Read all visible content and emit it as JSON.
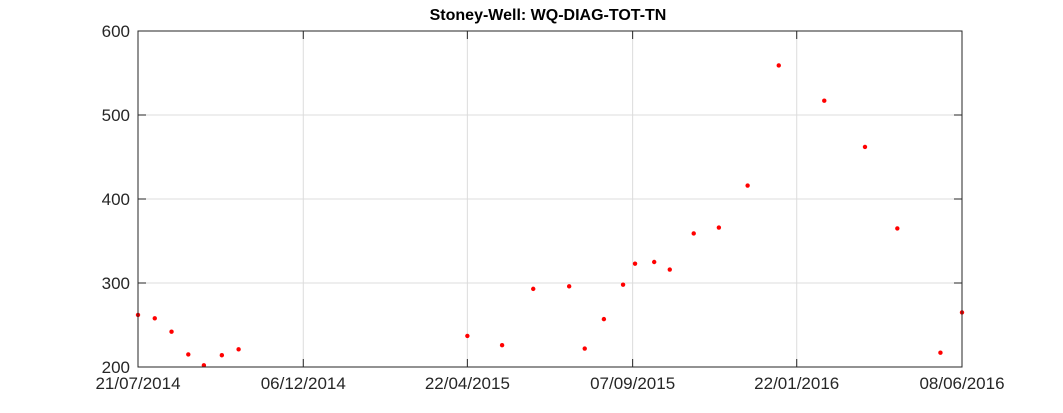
{
  "chart_data": {
    "type": "scatter",
    "title": "Stoney-Well: WQ-DIAG-TOT-TN",
    "xlabel": "",
    "ylabel": "",
    "xlim": [
      "2014-07-21",
      "2016-06-08"
    ],
    "ylim": [
      200,
      600
    ],
    "x_ticks": [
      "21/07/2014",
      "06/12/2014",
      "22/04/2015",
      "07/09/2015",
      "22/01/2016",
      "08/06/2016"
    ],
    "y_ticks": [
      200,
      300,
      400,
      500,
      600
    ],
    "grid": true,
    "marker_color": "#ff0000",
    "series": [
      {
        "points": [
          {
            "x": "2014-07-21",
            "y": 262
          },
          {
            "x": "2014-08-04",
            "y": 258
          },
          {
            "x": "2014-08-18",
            "y": 242
          },
          {
            "x": "2014-09-01",
            "y": 215
          },
          {
            "x": "2014-09-14",
            "y": 202
          },
          {
            "x": "2014-09-29",
            "y": 214
          },
          {
            "x": "2014-10-13",
            "y": 221
          },
          {
            "x": "2015-04-22",
            "y": 237
          },
          {
            "x": "2015-05-21",
            "y": 226
          },
          {
            "x": "2015-06-16",
            "y": 293
          },
          {
            "x": "2015-07-16",
            "y": 296
          },
          {
            "x": "2015-07-29",
            "y": 222
          },
          {
            "x": "2015-08-14",
            "y": 257
          },
          {
            "x": "2015-08-30",
            "y": 298
          },
          {
            "x": "2015-09-09",
            "y": 323
          },
          {
            "x": "2015-09-25",
            "y": 325
          },
          {
            "x": "2015-10-08",
            "y": 316
          },
          {
            "x": "2015-10-28",
            "y": 359
          },
          {
            "x": "2015-11-18",
            "y": 366
          },
          {
            "x": "2015-12-12",
            "y": 416
          },
          {
            "x": "2016-01-07",
            "y": 559
          },
          {
            "x": "2016-02-14",
            "y": 517
          },
          {
            "x": "2016-03-19",
            "y": 462
          },
          {
            "x": "2016-04-15",
            "y": 365
          },
          {
            "x": "2016-05-21",
            "y": 217
          },
          {
            "x": "2016-06-08",
            "y": 265
          }
        ]
      }
    ]
  }
}
